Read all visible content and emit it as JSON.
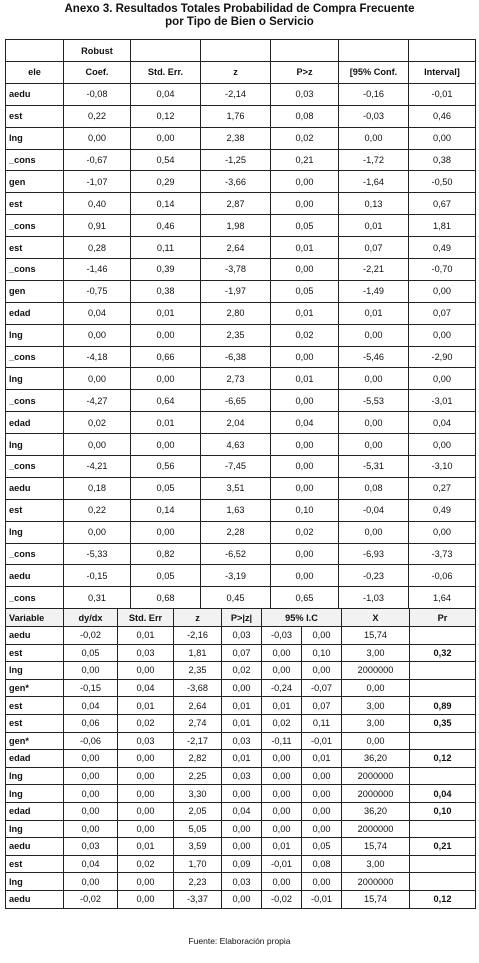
{
  "title_line1": "Anexo 3. Resultados Totales Probabilidad de Compra Frecuente",
  "title_line2": "por Tipo de Bien o Servicio",
  "table1": {
    "header_top": [
      "",
      "Robust",
      "",
      "",
      "",
      "",
      ""
    ],
    "header": [
      "ele",
      "Coef.",
      "Std. Err.",
      "z",
      "P>z",
      "[95% Conf.",
      "Interval]"
    ],
    "rows": [
      [
        "aedu",
        "-0,08",
        "0,04",
        "-2,14",
        "0,03",
        "-0,16",
        "-0,01"
      ],
      [
        "est",
        "0,22",
        "0,12",
        "1,76",
        "0,08",
        "-0,03",
        "0,46"
      ],
      [
        "lng",
        "0,00",
        "0,00",
        "2,38",
        "0,02",
        "0,00",
        "0,00"
      ],
      [
        "_cons",
        "-0,67",
        "0,54",
        "-1,25",
        "0,21",
        "-1,72",
        "0,38"
      ],
      [
        "gen",
        "-1,07",
        "0,29",
        "-3,66",
        "0,00",
        "-1,64",
        "-0,50"
      ],
      [
        "est",
        "0,40",
        "0,14",
        "2,87",
        "0,00",
        "0,13",
        "0,67"
      ],
      [
        "_cons",
        "0,91",
        "0,46",
        "1,98",
        "0,05",
        "0,01",
        "1,81"
      ],
      [
        "est",
        "0,28",
        "0,11",
        "2,64",
        "0,01",
        "0,07",
        "0,49"
      ],
      [
        "_cons",
        "-1,46",
        "0,39",
        "-3,78",
        "0,00",
        "-2,21",
        "-0,70"
      ],
      [
        "gen",
        "-0,75",
        "0,38",
        "-1,97",
        "0,05",
        "-1,49",
        "0,00"
      ],
      [
        "edad",
        "0,04",
        "0,01",
        "2,80",
        "0,01",
        "0,01",
        "0,07"
      ],
      [
        "lng",
        "0,00",
        "0,00",
        "2,35",
        "0,02",
        "0,00",
        "0,00"
      ],
      [
        "_cons",
        "-4,18",
        "0,66",
        "-6,38",
        "0,00",
        "-5,46",
        "-2,90"
      ],
      [
        "lng",
        "0,00",
        "0,00",
        "2,73",
        "0,01",
        "0,00",
        "0,00"
      ],
      [
        "_cons",
        "-4,27",
        "0,64",
        "-6,65",
        "0,00",
        "-5,53",
        "-3,01"
      ],
      [
        "edad",
        "0,02",
        "0,01",
        "2,04",
        "0,04",
        "0,00",
        "0,04"
      ],
      [
        "lng",
        "0,00",
        "0,00",
        "4,63",
        "0,00",
        "0,00",
        "0,00"
      ],
      [
        "_cons",
        "-4,21",
        "0,56",
        "-7,45",
        "0,00",
        "-5,31",
        "-3,10"
      ],
      [
        "aedu",
        "0,18",
        "0,05",
        "3,51",
        "0,00",
        "0,08",
        "0,27"
      ],
      [
        "est",
        "0,22",
        "0,14",
        "1,63",
        "0,10",
        "-0,04",
        "0,49"
      ],
      [
        "lng",
        "0,00",
        "0,00",
        "2,28",
        "0,02",
        "0,00",
        "0,00"
      ],
      [
        "_cons",
        "-5,33",
        "0,82",
        "-6,52",
        "0,00",
        "-6,93",
        "-3,73"
      ],
      [
        "aedu",
        "-0,15",
        "0,05",
        "-3,19",
        "0,00",
        "-0,23",
        "-0,06"
      ],
      [
        "_cons",
        "0,31",
        "0,68",
        "0,45",
        "0,65",
        "-1,03",
        "1,64"
      ]
    ]
  },
  "table2": {
    "header": [
      "Variable",
      "dy/dx",
      "Std. Err",
      "z",
      "P>|z|",
      "95% I.C",
      "X",
      "Pr"
    ],
    "rows": [
      [
        "aedu",
        "-0,02",
        "0,01",
        "-2,16",
        "0,03",
        "-0,03",
        "0,00",
        "15,74",
        ""
      ],
      [
        "est",
        "0,05",
        "0,03",
        "1,81",
        "0,07",
        "0,00",
        "0,10",
        "3,00",
        "0,32"
      ],
      [
        "lng",
        "0,00",
        "0,00",
        "2,35",
        "0,02",
        "0,00",
        "0,00",
        "2000000",
        ""
      ],
      [
        "gen*",
        "-0,15",
        "0,04",
        "-3,68",
        "0,00",
        "-0,24",
        "-0,07",
        "0,00",
        ""
      ],
      [
        "est",
        "0,04",
        "0,01",
        "2,64",
        "0,01",
        "0,01",
        "0,07",
        "3,00",
        "0,89"
      ],
      [
        "est",
        "0,06",
        "0,02",
        "2,74",
        "0,01",
        "0,02",
        "0,11",
        "3,00",
        "0,35"
      ],
      [
        "gen*",
        "-0,06",
        "0,03",
        "-2,17",
        "0,03",
        "-0,11",
        "-0,01",
        "0,00",
        ""
      ],
      [
        "edad",
        "0,00",
        "0,00",
        "2,82",
        "0,01",
        "0,00",
        "0,01",
        "36,20",
        "0,12"
      ],
      [
        "lng",
        "0,00",
        "0,00",
        "2,25",
        "0,03",
        "0,00",
        "0,00",
        "2000000",
        ""
      ],
      [
        "lng",
        "0,00",
        "0,00",
        "3,30",
        "0,00",
        "0,00",
        "0,00",
        "2000000",
        "0,04"
      ],
      [
        "edad",
        "0,00",
        "0,00",
        "2,05",
        "0,04",
        "0,00",
        "0,00",
        "36,20",
        "0,10"
      ],
      [
        "lng",
        "0,00",
        "0,00",
        "5,05",
        "0,00",
        "0,00",
        "0,00",
        "2000000",
        ""
      ],
      [
        "aedu",
        "0,03",
        "0,01",
        "3,59",
        "0,00",
        "0,01",
        "0,05",
        "15,74",
        "0,21"
      ],
      [
        "est",
        "0,04",
        "0,02",
        "1,70",
        "0,09",
        "-0,01",
        "0,08",
        "3,00",
        ""
      ],
      [
        "lng",
        "0,00",
        "0,00",
        "2,23",
        "0,03",
        "0,00",
        "0,00",
        "2000000",
        ""
      ],
      [
        "aedu",
        "-0,02",
        "0,00",
        "-3,37",
        "0,00",
        "-0,02",
        "-0,01",
        "15,74",
        "0,12"
      ]
    ]
  },
  "source": "Fuente: Elaboración propia"
}
